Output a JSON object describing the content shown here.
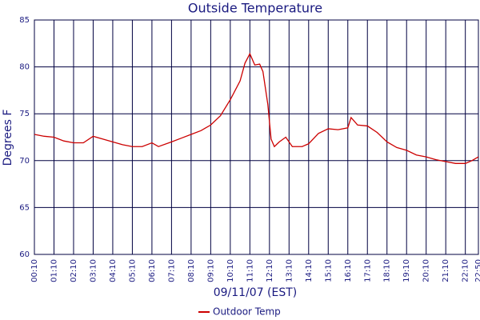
{
  "chart_data": {
    "type": "line",
    "title": "Outside Temperature",
    "x_label": "09/11/07 (EST)",
    "y_label": "Degrees F",
    "x": [
      10,
      40,
      70,
      100,
      130,
      160,
      190,
      220,
      250,
      280,
      310,
      340,
      370,
      390,
      430,
      460,
      490,
      520,
      550,
      580,
      610,
      640,
      655,
      670,
      685,
      700,
      710,
      725,
      735,
      745,
      760,
      780,
      800,
      830,
      850,
      880,
      910,
      940,
      970,
      980,
      1000,
      1030,
      1060,
      1090,
      1120,
      1150,
      1180,
      1210,
      1240,
      1270,
      1300,
      1330,
      1350,
      1370
    ],
    "series": [
      {
        "name": "Outdoor Temp",
        "color": "#cc0000",
        "values": [
          72.8,
          72.6,
          72.5,
          72.1,
          71.9,
          71.9,
          72.6,
          72.3,
          72.0,
          71.7,
          71.5,
          71.5,
          71.9,
          71.5,
          72.0,
          72.4,
          72.8,
          73.2,
          73.8,
          74.8,
          76.5,
          78.5,
          80.4,
          81.4,
          80.2,
          80.3,
          79.5,
          76.0,
          72.3,
          71.5,
          72.0,
          72.5,
          71.5,
          71.5,
          71.8,
          72.9,
          73.4,
          73.3,
          73.5,
          74.6,
          73.8,
          73.7,
          73.0,
          72.0,
          71.4,
          71.1,
          70.6,
          70.4,
          70.1,
          69.9,
          69.7,
          69.7,
          70.0,
          70.4
        ]
      }
    ],
    "xlim": [
      10,
      1370
    ],
    "xticks": [
      {
        "value": 10,
        "label": "00:10"
      },
      {
        "value": 70,
        "label": "01:10"
      },
      {
        "value": 130,
        "label": "02:10"
      },
      {
        "value": 190,
        "label": "03:10"
      },
      {
        "value": 250,
        "label": "04:10"
      },
      {
        "value": 310,
        "label": "05:10"
      },
      {
        "value": 370,
        "label": "06:10"
      },
      {
        "value": 430,
        "label": "07:10"
      },
      {
        "value": 490,
        "label": "08:10"
      },
      {
        "value": 550,
        "label": "09:10"
      },
      {
        "value": 610,
        "label": "10:10"
      },
      {
        "value": 670,
        "label": "11:10"
      },
      {
        "value": 730,
        "label": "12:10"
      },
      {
        "value": 790,
        "label": "13:10"
      },
      {
        "value": 850,
        "label": "14:10"
      },
      {
        "value": 910,
        "label": "15:10"
      },
      {
        "value": 970,
        "label": "16:10"
      },
      {
        "value": 1030,
        "label": "17:10"
      },
      {
        "value": 1090,
        "label": "18:10"
      },
      {
        "value": 1150,
        "label": "19:10"
      },
      {
        "value": 1210,
        "label": "20:10"
      },
      {
        "value": 1270,
        "label": "21:10"
      },
      {
        "value": 1330,
        "label": "22:10"
      },
      {
        "value": 1370,
        "label": "22:50"
      }
    ],
    "ylim": [
      60,
      85
    ],
    "yticks": [
      60,
      65,
      70,
      75,
      80,
      85
    ],
    "grid": true
  }
}
